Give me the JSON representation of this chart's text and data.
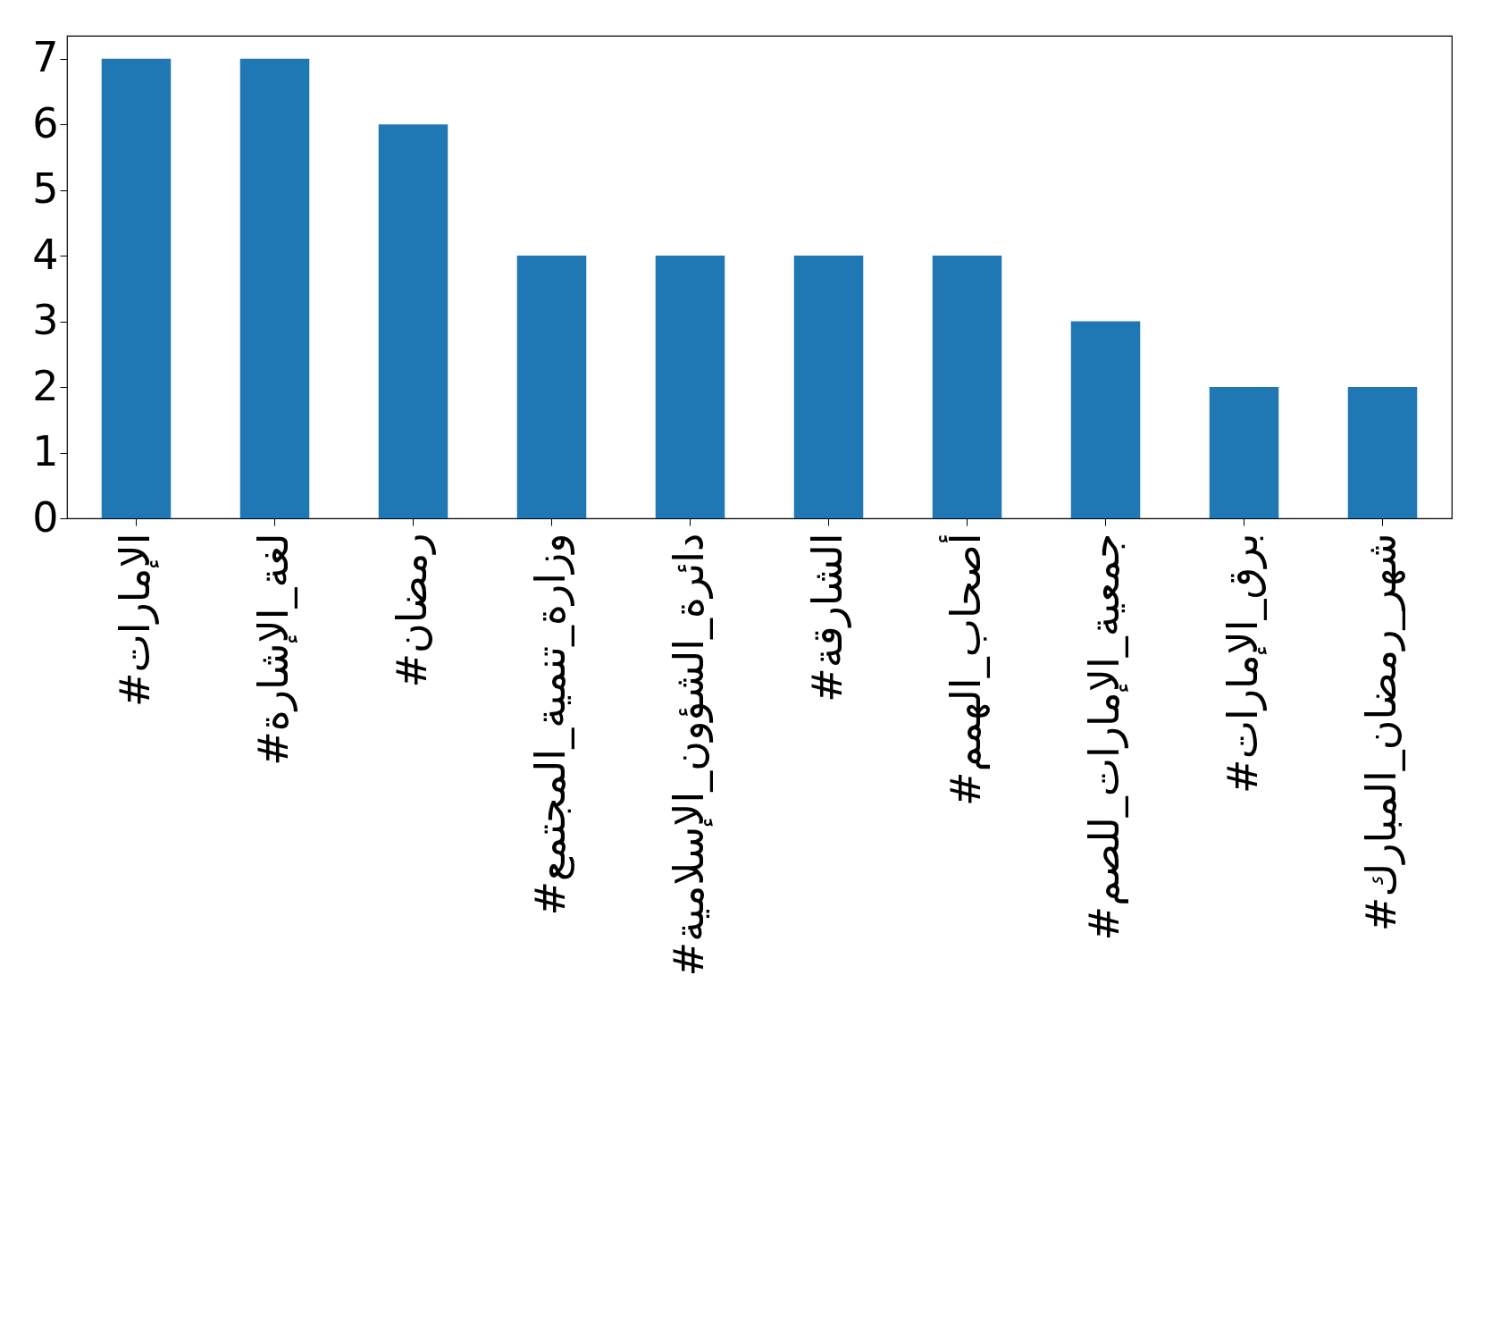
{
  "chart_data": {
    "type": "bar",
    "categories": [
      "#الإمارات",
      "#لغة_الإشارة",
      "#رمضان",
      "#وزارة_تنمية_المجتمع",
      "#دائرة_الشؤون_الإسلامية",
      "#الشارقة",
      "#أصحاب_الهمم",
      "#جمعية_الإمارات_للصم",
      "#برق_الإمارات",
      "#شهر_رمضان_المبارك"
    ],
    "values": [
      7,
      7,
      6,
      4,
      4,
      4,
      4,
      3,
      2,
      2
    ],
    "color": "#1f77b4",
    "ylim": [
      0,
      7.35
    ],
    "yticks": [
      0,
      1,
      2,
      3,
      4,
      5,
      6,
      7
    ],
    "grid": false
  }
}
